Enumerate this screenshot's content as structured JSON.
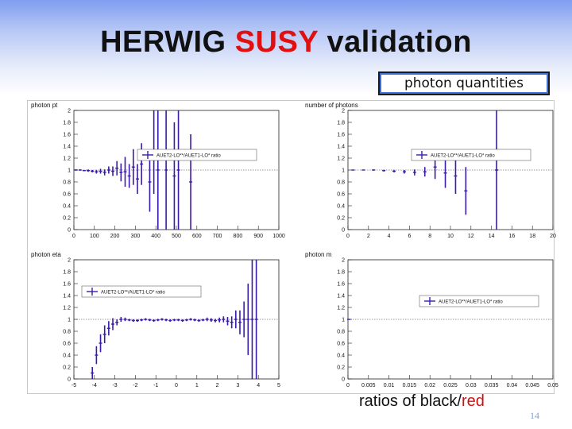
{
  "slide": {
    "title_part1": "HERWIG ",
    "title_highlight": "SUSY",
    "title_part2": " validation",
    "tag": "photon quantities",
    "caption_prefix": "ratios of ",
    "caption_black": "black",
    "caption_sep": "/",
    "caption_red": "red",
    "page_number": "14"
  },
  "colors": {
    "series": "#3a1aa8",
    "reference": "#333333",
    "title_accent": "#e01010"
  },
  "chart_data": [
    {
      "type": "scatter",
      "title": "photon pt",
      "legend": "AUET2-LO**/AUET1-LO* ratio",
      "legend_position": "top-right",
      "xlim": [
        0,
        1000
      ],
      "ylim": [
        0,
        2
      ],
      "xticks": [
        "0",
        "100",
        "200",
        "300",
        "400",
        "500",
        "600",
        "700",
        "800",
        "900",
        "1000"
      ],
      "yticks": [
        "0",
        "0.2",
        "0.4",
        "0.6",
        "0.8",
        "1",
        "1.2",
        "1.4",
        "1.6",
        "1.8",
        "2"
      ],
      "reference_line": 1,
      "points": [
        {
          "x": 10,
          "y": 1.0,
          "err": 0.01
        },
        {
          "x": 30,
          "y": 1.0,
          "err": 0.01
        },
        {
          "x": 50,
          "y": 0.99,
          "err": 0.01
        },
        {
          "x": 70,
          "y": 0.99,
          "err": 0.02
        },
        {
          "x": 90,
          "y": 0.98,
          "err": 0.02
        },
        {
          "x": 110,
          "y": 0.97,
          "err": 0.03
        },
        {
          "x": 130,
          "y": 0.98,
          "err": 0.04
        },
        {
          "x": 150,
          "y": 0.96,
          "err": 0.05
        },
        {
          "x": 170,
          "y": 1.0,
          "err": 0.06
        },
        {
          "x": 190,
          "y": 0.98,
          "err": 0.08
        },
        {
          "x": 210,
          "y": 1.03,
          "err": 0.12
        },
        {
          "x": 230,
          "y": 0.96,
          "err": 0.15
        },
        {
          "x": 250,
          "y": 0.97,
          "err": 0.25
        },
        {
          "x": 270,
          "y": 0.9,
          "err": 0.2
        },
        {
          "x": 290,
          "y": 1.05,
          "err": 0.3
        },
        {
          "x": 310,
          "y": 0.85,
          "err": 0.25
        },
        {
          "x": 330,
          "y": 1.1,
          "err": 0.35
        },
        {
          "x": 370,
          "y": 0.8,
          "err": 0.5
        },
        {
          "x": 390,
          "y": 1.3,
          "err": 0.7
        },
        {
          "x": 410,
          "y": 1.0,
          "err": 1.0
        },
        {
          "x": 450,
          "y": 1.0,
          "err": 1.0
        },
        {
          "x": 490,
          "y": 0.9,
          "err": 0.9
        },
        {
          "x": 510,
          "y": 1.0,
          "err": 1.0
        },
        {
          "x": 570,
          "y": 0.8,
          "err": 0.8
        }
      ]
    },
    {
      "type": "scatter",
      "title": "number of photons",
      "legend": "AUET2-LO**/AUET1-LO* ratio",
      "legend_position": "top-right",
      "xlim": [
        0,
        20
      ],
      "ylim": [
        0,
        2
      ],
      "xticks": [
        "0",
        "2",
        "4",
        "6",
        "8",
        "10",
        "12",
        "14",
        "16",
        "18",
        "20"
      ],
      "yticks": [
        "0",
        "0.2",
        "0.4",
        "0.6",
        "0.8",
        "1",
        "1.2",
        "1.4",
        "1.6",
        "1.8",
        "2"
      ],
      "reference_line": 1,
      "points": [
        {
          "x": 0.5,
          "y": 1.0,
          "err": 0.005
        },
        {
          "x": 1.5,
          "y": 1.0,
          "err": 0.005
        },
        {
          "x": 2.5,
          "y": 1.0,
          "err": 0.01
        },
        {
          "x": 3.5,
          "y": 0.99,
          "err": 0.015
        },
        {
          "x": 4.5,
          "y": 0.98,
          "err": 0.02
        },
        {
          "x": 5.5,
          "y": 0.97,
          "err": 0.03
        },
        {
          "x": 6.5,
          "y": 0.96,
          "err": 0.05
        },
        {
          "x": 7.5,
          "y": 0.97,
          "err": 0.08
        },
        {
          "x": 8.5,
          "y": 1.05,
          "err": 0.2
        },
        {
          "x": 9.5,
          "y": 0.95,
          "err": 0.25
        },
        {
          "x": 10.5,
          "y": 0.9,
          "err": 0.3
        },
        {
          "x": 11.5,
          "y": 0.65,
          "err": 0.4
        },
        {
          "x": 14.5,
          "y": 1.0,
          "err": 1.0
        }
      ]
    },
    {
      "type": "scatter",
      "title": "photon eta",
      "legend": "AUET2-LO**/AUET1-LO* ratio",
      "legend_position": "top-left",
      "xlim": [
        -5,
        5
      ],
      "ylim": [
        0,
        2
      ],
      "xticks": [
        "-5",
        "-4",
        "-3",
        "-2",
        "-1",
        "0",
        "1",
        "2",
        "3",
        "4",
        "5"
      ],
      "yticks": [
        "0",
        "0.2",
        "0.4",
        "0.6",
        "0.8",
        "1",
        "1.2",
        "1.4",
        "1.6",
        "1.8",
        "2"
      ],
      "reference_line": 1,
      "points": [
        {
          "x": -4.1,
          "y": 0.1,
          "err": 0.1
        },
        {
          "x": -3.9,
          "y": 0.4,
          "err": 0.15
        },
        {
          "x": -3.7,
          "y": 0.6,
          "err": 0.15
        },
        {
          "x": -3.5,
          "y": 0.75,
          "err": 0.15
        },
        {
          "x": -3.3,
          "y": 0.85,
          "err": 0.12
        },
        {
          "x": -3.1,
          "y": 0.92,
          "err": 0.1
        },
        {
          "x": -2.9,
          "y": 0.95,
          "err": 0.05
        },
        {
          "x": -2.7,
          "y": 1.0,
          "err": 0.04
        },
        {
          "x": -2.5,
          "y": 1.0,
          "err": 0.03
        },
        {
          "x": -2.3,
          "y": 0.99,
          "err": 0.02
        },
        {
          "x": -2.1,
          "y": 0.98,
          "err": 0.02
        },
        {
          "x": -1.9,
          "y": 0.98,
          "err": 0.02
        },
        {
          "x": -1.7,
          "y": 0.99,
          "err": 0.02
        },
        {
          "x": -1.5,
          "y": 1.0,
          "err": 0.02
        },
        {
          "x": -1.3,
          "y": 0.99,
          "err": 0.02
        },
        {
          "x": -1.1,
          "y": 0.98,
          "err": 0.02
        },
        {
          "x": -0.9,
          "y": 0.99,
          "err": 0.02
        },
        {
          "x": -0.7,
          "y": 1.0,
          "err": 0.02
        },
        {
          "x": -0.5,
          "y": 0.99,
          "err": 0.02
        },
        {
          "x": -0.3,
          "y": 0.98,
          "err": 0.02
        },
        {
          "x": -0.1,
          "y": 0.99,
          "err": 0.02
        },
        {
          "x": 0.1,
          "y": 0.99,
          "err": 0.02
        },
        {
          "x": 0.3,
          "y": 0.98,
          "err": 0.02
        },
        {
          "x": 0.5,
          "y": 0.99,
          "err": 0.02
        },
        {
          "x": 0.7,
          "y": 1.0,
          "err": 0.02
        },
        {
          "x": 0.9,
          "y": 0.99,
          "err": 0.02
        },
        {
          "x": 1.1,
          "y": 0.98,
          "err": 0.02
        },
        {
          "x": 1.3,
          "y": 0.99,
          "err": 0.02
        },
        {
          "x": 1.5,
          "y": 1.0,
          "err": 0.03
        },
        {
          "x": 1.7,
          "y": 0.99,
          "err": 0.03
        },
        {
          "x": 1.9,
          "y": 0.98,
          "err": 0.03
        },
        {
          "x": 2.1,
          "y": 0.99,
          "err": 0.04
        },
        {
          "x": 2.3,
          "y": 1.0,
          "err": 0.05
        },
        {
          "x": 2.5,
          "y": 0.97,
          "err": 0.07
        },
        {
          "x": 2.7,
          "y": 0.95,
          "err": 0.1
        },
        {
          "x": 2.9,
          "y": 1.0,
          "err": 0.15
        },
        {
          "x": 3.1,
          "y": 0.95,
          "err": 0.2
        },
        {
          "x": 3.3,
          "y": 1.0,
          "err": 0.3
        },
        {
          "x": 3.5,
          "y": 1.0,
          "err": 0.6
        },
        {
          "x": 3.7,
          "y": 1.0,
          "err": 1.0
        },
        {
          "x": 3.9,
          "y": 1.0,
          "err": 1.0
        }
      ]
    },
    {
      "type": "scatter",
      "title": "photon m",
      "legend": "AUET2-LO**/AUET1-LO* ratio",
      "legend_position": "right",
      "xlim": [
        0,
        0.05
      ],
      "ylim": [
        0,
        2
      ],
      "xticks": [
        "0",
        "0.005",
        "0.01",
        "0.015",
        "0.02",
        "0.025",
        "0.03",
        "0.035",
        "0.04",
        "0.045",
        "0.05"
      ],
      "yticks": [
        "0",
        "0.2",
        "0.4",
        "0.6",
        "0.8",
        "1",
        "1.2",
        "1.4",
        "1.6",
        "1.8",
        "2"
      ],
      "reference_line": 1,
      "points": [
        {
          "x": 0.0002,
          "y": 1.0,
          "err": 0.005
        }
      ]
    }
  ]
}
